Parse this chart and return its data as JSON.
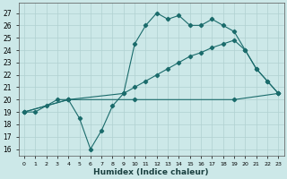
{
  "xlabel": "Humidex (Indice chaleur)",
  "background_color": "#cce8e8",
  "grid_color": "#b0d0d0",
  "line_color": "#1a6b6b",
  "x_ticks": [
    0,
    1,
    2,
    3,
    4,
    5,
    6,
    7,
    8,
    9,
    10,
    11,
    12,
    13,
    14,
    15,
    16,
    17,
    18,
    19,
    20,
    21,
    22,
    23
  ],
  "y_ticks": [
    16,
    17,
    18,
    19,
    20,
    21,
    22,
    23,
    24,
    25,
    26,
    27
  ],
  "ylim": [
    15.5,
    27.8
  ],
  "xlim": [
    -0.5,
    23.5
  ],
  "series": [
    {
      "x": [
        0,
        1,
        2,
        3,
        4,
        5,
        6,
        7,
        8,
        9,
        10,
        11,
        12,
        13,
        14,
        15,
        16,
        17,
        18,
        19,
        20,
        21,
        22,
        23
      ],
      "y": [
        19,
        19,
        19.5,
        20,
        20,
        18.5,
        16,
        17.5,
        19.5,
        20.5,
        24.5,
        26,
        27,
        26.5,
        26.8,
        26,
        26,
        26.5,
        26,
        25.5,
        24,
        22.5,
        21.5,
        20.5
      ]
    },
    {
      "x": [
        0,
        4,
        9,
        10,
        11,
        12,
        13,
        14,
        15,
        16,
        17,
        18,
        19,
        20,
        21,
        22,
        23
      ],
      "y": [
        19,
        20,
        20.5,
        21,
        21.5,
        22,
        22.5,
        23,
        23.5,
        23.8,
        24.2,
        24.5,
        24.8,
        24,
        22.5,
        21.5,
        20.5
      ]
    },
    {
      "x": [
        0,
        4,
        10,
        19,
        23
      ],
      "y": [
        19,
        20,
        20,
        20,
        20.5
      ]
    }
  ]
}
